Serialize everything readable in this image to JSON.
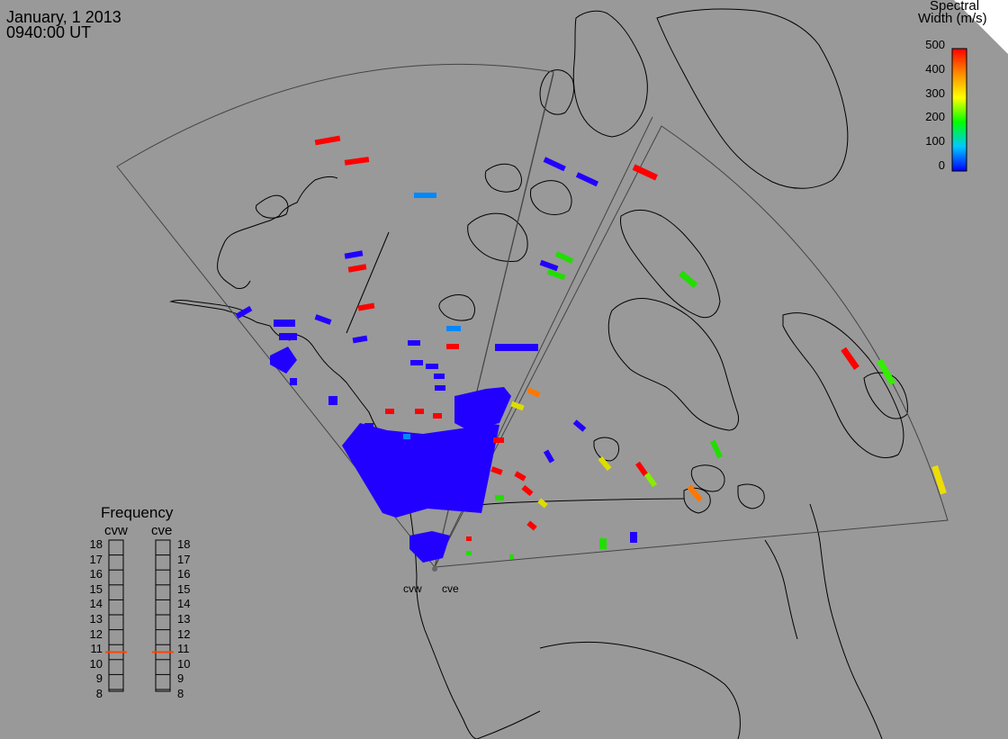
{
  "header": {
    "date": "January, 1 2013",
    "time": "0940:00 UT"
  },
  "colorbar": {
    "title_line1": "Spectral",
    "title_line2": "Width (m/s)",
    "ticks": [
      "500",
      "400",
      "300",
      "200",
      "100",
      "0"
    ],
    "range": [
      0,
      500
    ]
  },
  "frequency_panel": {
    "title": "Frequency",
    "radar_left": "cvw",
    "radar_right": "cve",
    "ticks": [
      "18",
      "17",
      "16",
      "15",
      "14",
      "13",
      "12",
      "11",
      "10",
      "9",
      "8"
    ],
    "cvw_value": 10.5,
    "cve_value": 10.5,
    "marker_color": "#ff4400"
  },
  "radars": {
    "left_label": "cvw",
    "right_label": "cve"
  },
  "colors": {
    "background": "#999999",
    "coast": "#000000",
    "fov": "#444444",
    "colorbar_scale": [
      "#0000ff",
      "#00c8ff",
      "#00ff00",
      "#ffff00",
      "#ff8800",
      "#ff0000"
    ]
  }
}
